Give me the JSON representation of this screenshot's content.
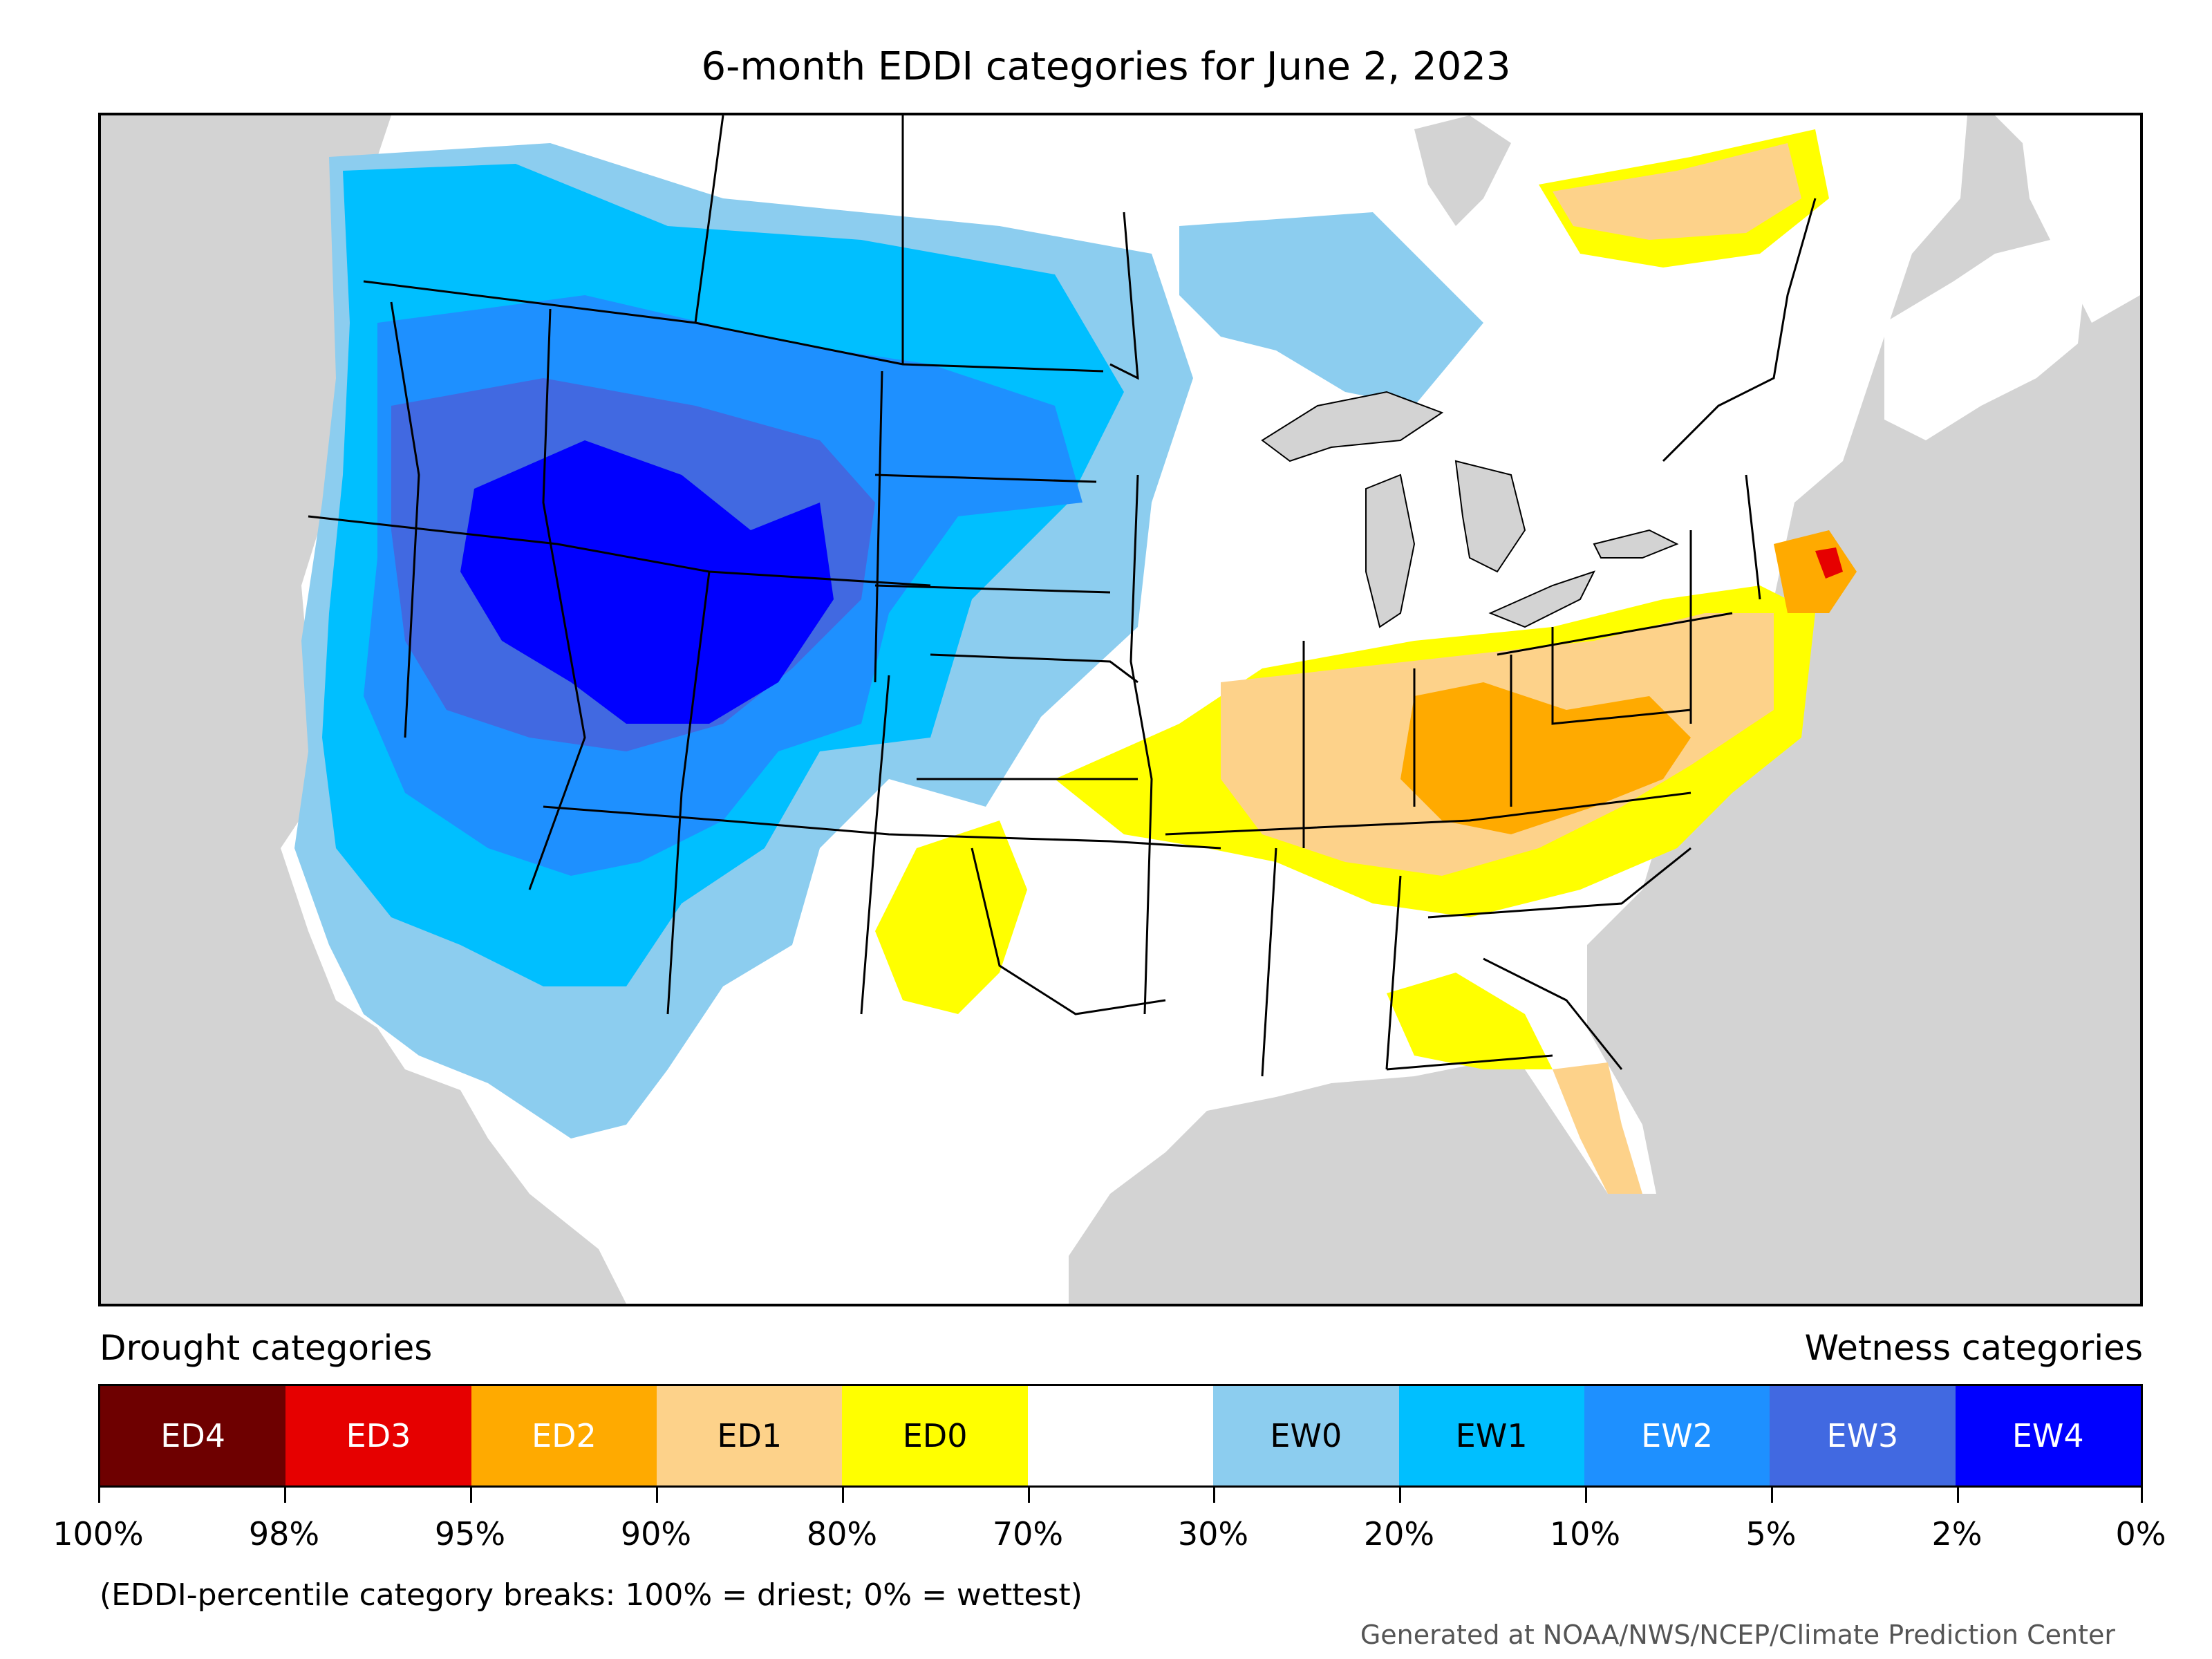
{
  "title": "6-month EDDI categories for June 2, 2023",
  "legend": {
    "drought_header": "Drought categories",
    "wetness_header": "Wetness categories",
    "categories": [
      {
        "label": "ED4",
        "color": "#6e0000",
        "text_color": "#ffffff"
      },
      {
        "label": "ED3",
        "color": "#e60000",
        "text_color": "#ffffff"
      },
      {
        "label": "ED2",
        "color": "#ffaa00",
        "text_color": "#ffffff"
      },
      {
        "label": "ED1",
        "color": "#fdd28a",
        "text_color": "#000000"
      },
      {
        "label": "ED0",
        "color": "#ffff00",
        "text_color": "#000000"
      },
      {
        "label": "",
        "color": "#ffffff",
        "text_color": "#000000"
      },
      {
        "label": "EW0",
        "color": "#8ccdef",
        "text_color": "#000000"
      },
      {
        "label": "EW1",
        "color": "#00bfff",
        "text_color": "#000000"
      },
      {
        "label": "EW2",
        "color": "#1e90ff",
        "text_color": "#ffffff"
      },
      {
        "label": "EW3",
        "color": "#4169e1",
        "text_color": "#ffffff"
      },
      {
        "label": "EW4",
        "color": "#0000ff",
        "text_color": "#ffffff"
      }
    ],
    "breaks": [
      "100%",
      "98%",
      "95%",
      "90%",
      "80%",
      "70%",
      "30%",
      "20%",
      "10%",
      "5%",
      "2%",
      "0%"
    ],
    "note": "(EDDI-percentile category breaks: 100% = driest; 0% = wettest)"
  },
  "credit": "Generated at NOAA/NWS/NCEP/Climate Prediction Center",
  "map": {
    "background_color": "#d3d3d3",
    "land_color": "#ffffff",
    "lakes_color": "#d3d3d3"
  }
}
